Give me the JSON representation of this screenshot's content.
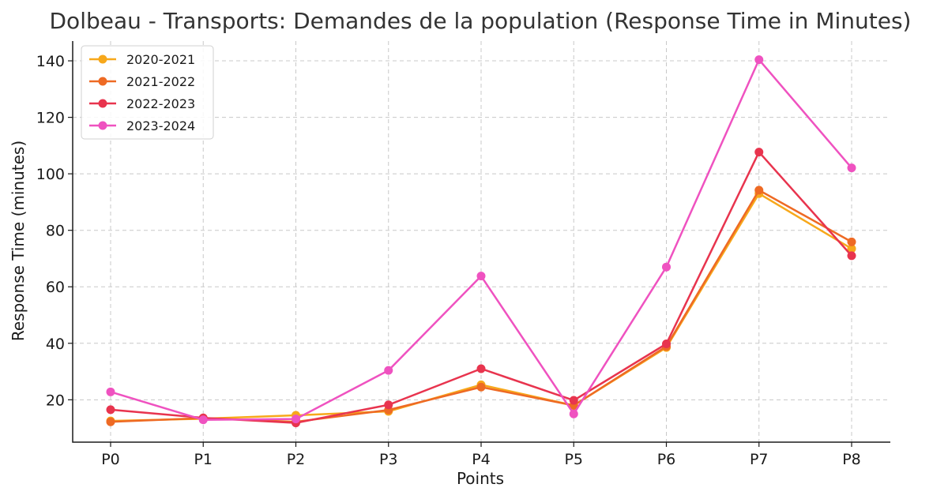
{
  "chart_data": {
    "type": "line",
    "title": "Dolbeau - Transports: Demandes de la population (Response Time in Minutes)",
    "xlabel": "Points",
    "ylabel": "Response Time (minutes)",
    "categories": [
      "P0",
      "P1",
      "P2",
      "P3",
      "P4",
      "P5",
      "P6",
      "P7",
      "P8"
    ],
    "ylim": [
      5,
      147
    ],
    "yticks": [
      20,
      40,
      60,
      80,
      100,
      120,
      140
    ],
    "grid": true,
    "legend_position": "top-left",
    "series": [
      {
        "name": "2020-2021",
        "color": "#f7a81b",
        "values": [
          12.5,
          13.3,
          14.5,
          15.9,
          25.3,
          18.0,
          38.5,
          93.0,
          73.5
        ]
      },
      {
        "name": "2021-2022",
        "color": "#ee6a24",
        "values": [
          12.2,
          13.5,
          12.2,
          16.4,
          24.5,
          18.0,
          38.9,
          94.2,
          75.9
        ]
      },
      {
        "name": "2022-2023",
        "color": "#e8344e",
        "values": [
          16.5,
          13.6,
          11.8,
          18.2,
          31.0,
          19.8,
          39.8,
          107.7,
          71.0
        ]
      },
      {
        "name": "2023-2024",
        "color": "#ef52c0",
        "values": [
          22.8,
          12.9,
          13.2,
          30.4,
          63.8,
          15.0,
          67.0,
          140.4,
          102.1
        ]
      }
    ]
  }
}
